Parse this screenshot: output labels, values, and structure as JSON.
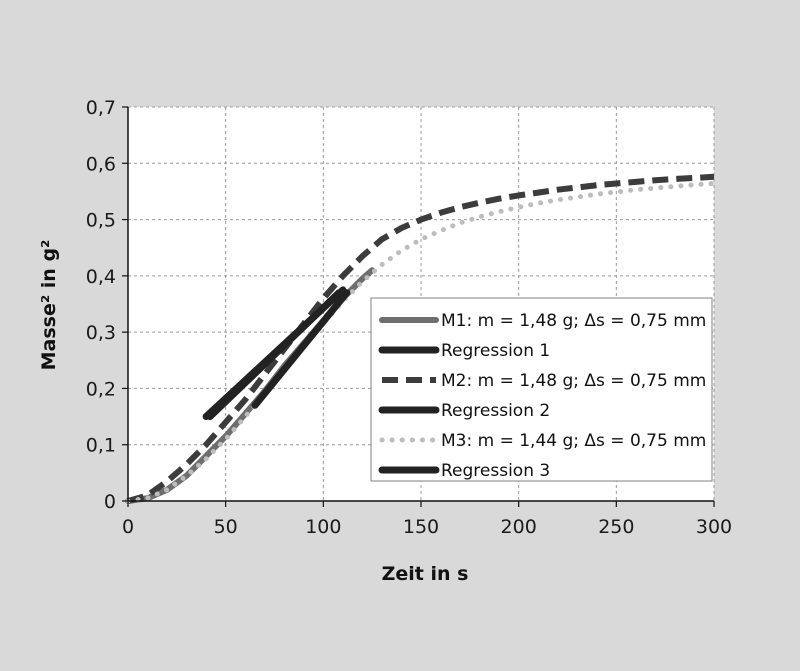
{
  "chart_data": {
    "type": "line",
    "xlabel": "Zeit in s",
    "ylabel": "Masse² in g²",
    "xlim": [
      0,
      300
    ],
    "ylim": [
      0,
      0.7
    ],
    "xticks": [
      0,
      50,
      100,
      150,
      200,
      250,
      300
    ],
    "yticks": [
      0,
      0.1,
      0.2,
      0.3,
      0.4,
      0.5,
      0.6,
      0.7
    ],
    "xtick_labels": [
      "0",
      "50",
      "100",
      "150",
      "200",
      "250",
      "300"
    ],
    "ytick_labels": [
      "0",
      "0,1",
      "0,2",
      "0,3",
      "0,4",
      "0,5",
      "0,6",
      "0,7"
    ],
    "grid": true,
    "legend_position": "center-right",
    "series": [
      {
        "name": "M1: m = 1,48 g; Δs = 0,75 mm",
        "style": "solid",
        "color": "#6e6e6e",
        "x": [
          0,
          10,
          20,
          30,
          40,
          50,
          60,
          70,
          80,
          90,
          100,
          110,
          120,
          125
        ],
        "y": [
          0,
          0.005,
          0.02,
          0.045,
          0.08,
          0.115,
          0.155,
          0.195,
          0.24,
          0.28,
          0.32,
          0.36,
          0.395,
          0.41
        ]
      },
      {
        "name": "Regression 1",
        "style": "solid",
        "color": "#222222",
        "x": [
          40,
          110
        ],
        "y": [
          0.15,
          0.375
        ]
      },
      {
        "name": "M2: m = 1,48 g; Δs = 0,75 mm",
        "style": "dashed",
        "color": "#3c3c3c",
        "x": [
          0,
          10,
          20,
          30,
          40,
          50,
          60,
          70,
          80,
          90,
          100,
          110,
          120,
          130,
          140,
          150,
          160,
          170,
          180,
          190,
          200,
          210,
          220,
          230,
          240,
          250,
          260,
          270,
          280,
          290,
          300
        ],
        "y": [
          0,
          0.01,
          0.035,
          0.065,
          0.1,
          0.14,
          0.18,
          0.225,
          0.27,
          0.315,
          0.36,
          0.4,
          0.435,
          0.465,
          0.485,
          0.5,
          0.512,
          0.522,
          0.53,
          0.537,
          0.543,
          0.548,
          0.553,
          0.557,
          0.561,
          0.564,
          0.567,
          0.57,
          0.572,
          0.574,
          0.576
        ]
      },
      {
        "name": "Regression 2",
        "style": "solid",
        "color": "#222222",
        "x": [
          42,
          108
        ],
        "y": [
          0.15,
          0.37
        ]
      },
      {
        "name": "M3: m = 1,44 g; Δs = 0,75 mm",
        "style": "dotted",
        "color": "#bdbdbd",
        "x": [
          0,
          10,
          20,
          30,
          40,
          50,
          60,
          70,
          80,
          90,
          100,
          110,
          120,
          130,
          140,
          150,
          160,
          170,
          180,
          190,
          200,
          210,
          220,
          230,
          240,
          250,
          260,
          270,
          280,
          290,
          300
        ],
        "y": [
          0,
          0.005,
          0.02,
          0.045,
          0.075,
          0.11,
          0.15,
          0.19,
          0.235,
          0.275,
          0.315,
          0.355,
          0.39,
          0.42,
          0.445,
          0.465,
          0.48,
          0.494,
          0.505,
          0.514,
          0.522,
          0.529,
          0.535,
          0.54,
          0.545,
          0.549,
          0.553,
          0.556,
          0.559,
          0.562,
          0.564
        ]
      },
      {
        "name": "Regression 3",
        "style": "solid",
        "color": "#222222",
        "x": [
          65,
          112
        ],
        "y": [
          0.17,
          0.37
        ]
      }
    ]
  }
}
